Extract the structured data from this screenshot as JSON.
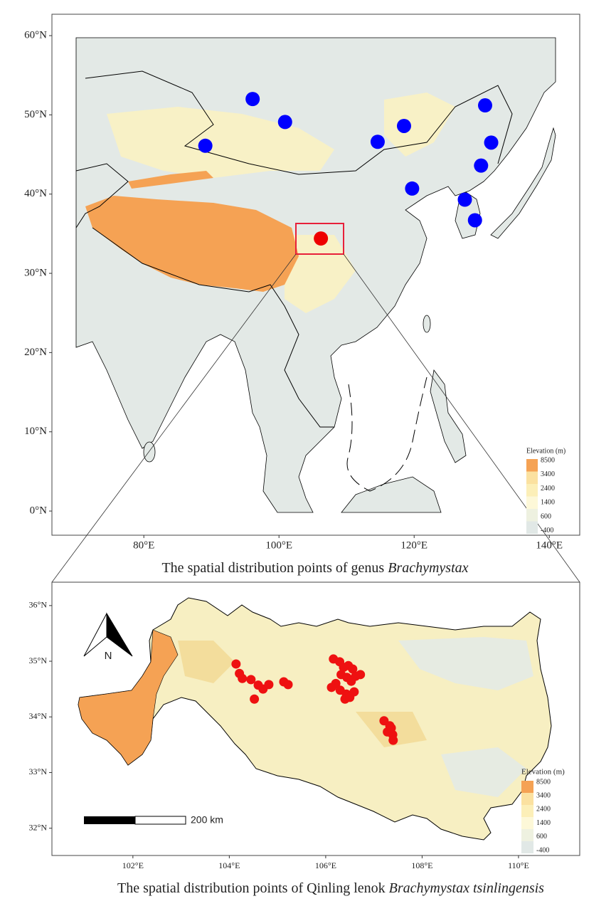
{
  "chart_data": [
    {
      "type": "map",
      "caption": "The spatial distribution points of genus ",
      "caption_italic": "Brachymystax",
      "xlim": [
        66.4,
        144.5
      ],
      "ylim": [
        -3.05,
        62.7
      ],
      "xticks": [
        {
          "value": 80,
          "label": "80°E"
        },
        {
          "value": 100,
          "label": "100°E"
        },
        {
          "value": 120,
          "label": "120°E"
        },
        {
          "value": 140,
          "label": "140°E"
        }
      ],
      "yticks": [
        {
          "value": 0,
          "label": "0°N"
        },
        {
          "value": 10,
          "label": "10°N"
        },
        {
          "value": 20,
          "label": "20°N"
        },
        {
          "value": 30,
          "label": "30°N"
        },
        {
          "value": 40,
          "label": "40°N"
        },
        {
          "value": 50,
          "label": "50°N"
        },
        {
          "value": 60,
          "label": "60°N"
        }
      ],
      "legend_title": "Elevation (m)",
      "legend_labels": [
        8500,
        3400,
        2400,
        1400,
        600,
        -400
      ],
      "legend_colors": [
        "#f5a254",
        "#fbe1a0",
        "#fcefb8",
        "#fdf8d8",
        "#eef1e0",
        "#e1e8e6"
      ],
      "series": [
        {
          "color": "#0000ff",
          "x": [
            89.1,
            96.1,
            100.9,
            114.6,
            118.5,
            130.5,
            131.4,
            129.9,
            119.7,
            127.5,
            129.0
          ],
          "y": [
            46.1,
            52.0,
            49.1,
            46.6,
            48.6,
            51.2,
            46.5,
            43.6,
            40.7,
            39.3,
            36.7
          ]
        },
        {
          "color": "#ee0000",
          "x": [
            106.2
          ],
          "y": [
            34.4
          ]
        }
      ]
    },
    {
      "type": "map",
      "caption": "The spatial distribution points of Qinling lenok ",
      "caption_italic": "Brachymystax tsinlingensis",
      "xlim": [
        100.32,
        111.27
      ],
      "ylim": [
        31.51,
        36.42
      ],
      "xticks": [
        {
          "value": 102,
          "label": "102°E"
        },
        {
          "value": 104,
          "label": "104°E"
        },
        {
          "value": 106,
          "label": "106°E"
        },
        {
          "value": 108,
          "label": "108°E"
        },
        {
          "value": 110,
          "label": "110°E"
        }
      ],
      "yticks": [
        {
          "value": 32,
          "label": "32°N"
        },
        {
          "value": 33,
          "label": "33°N"
        },
        {
          "value": 34,
          "label": "34°N"
        },
        {
          "value": 35,
          "label": "35°N"
        },
        {
          "value": 36,
          "label": "36°N"
        }
      ],
      "legend_title": "Elevation (m)",
      "legend_labels": [
        8500,
        3400,
        2400,
        1400,
        600,
        -400
      ],
      "legend_colors": [
        "#f5a254",
        "#fbe1a0",
        "#fcefb8",
        "#fdf8d8",
        "#eef1e0",
        "#e1e8e6"
      ],
      "scale_bar_label": "200 km",
      "north_label": "N",
      "series": [
        {
          "color": "#ee1111",
          "x": [
            104.14,
            104.21,
            104.27,
            104.45,
            104.6,
            104.7,
            104.82,
            104.52,
            105.13,
            105.22,
            106.16,
            106.29,
            106.37,
            106.47,
            106.56,
            106.32,
            106.44,
            106.62,
            106.72,
            106.53,
            106.21,
            106.12,
            106.3,
            106.43,
            106.4,
            106.59,
            106.5,
            107.21,
            107.33,
            107.28,
            107.39,
            107.4,
            107.36
          ],
          "y": [
            34.95,
            34.78,
            34.69,
            34.67,
            34.57,
            34.5,
            34.58,
            34.32,
            34.63,
            34.58,
            35.04,
            34.99,
            34.89,
            34.92,
            34.86,
            34.76,
            34.71,
            34.73,
            34.76,
            34.64,
            34.6,
            34.53,
            34.48,
            34.41,
            34.32,
            34.45,
            34.35,
            33.93,
            33.84,
            33.73,
            33.68,
            33.58,
            33.8
          ]
        }
      ]
    }
  ]
}
